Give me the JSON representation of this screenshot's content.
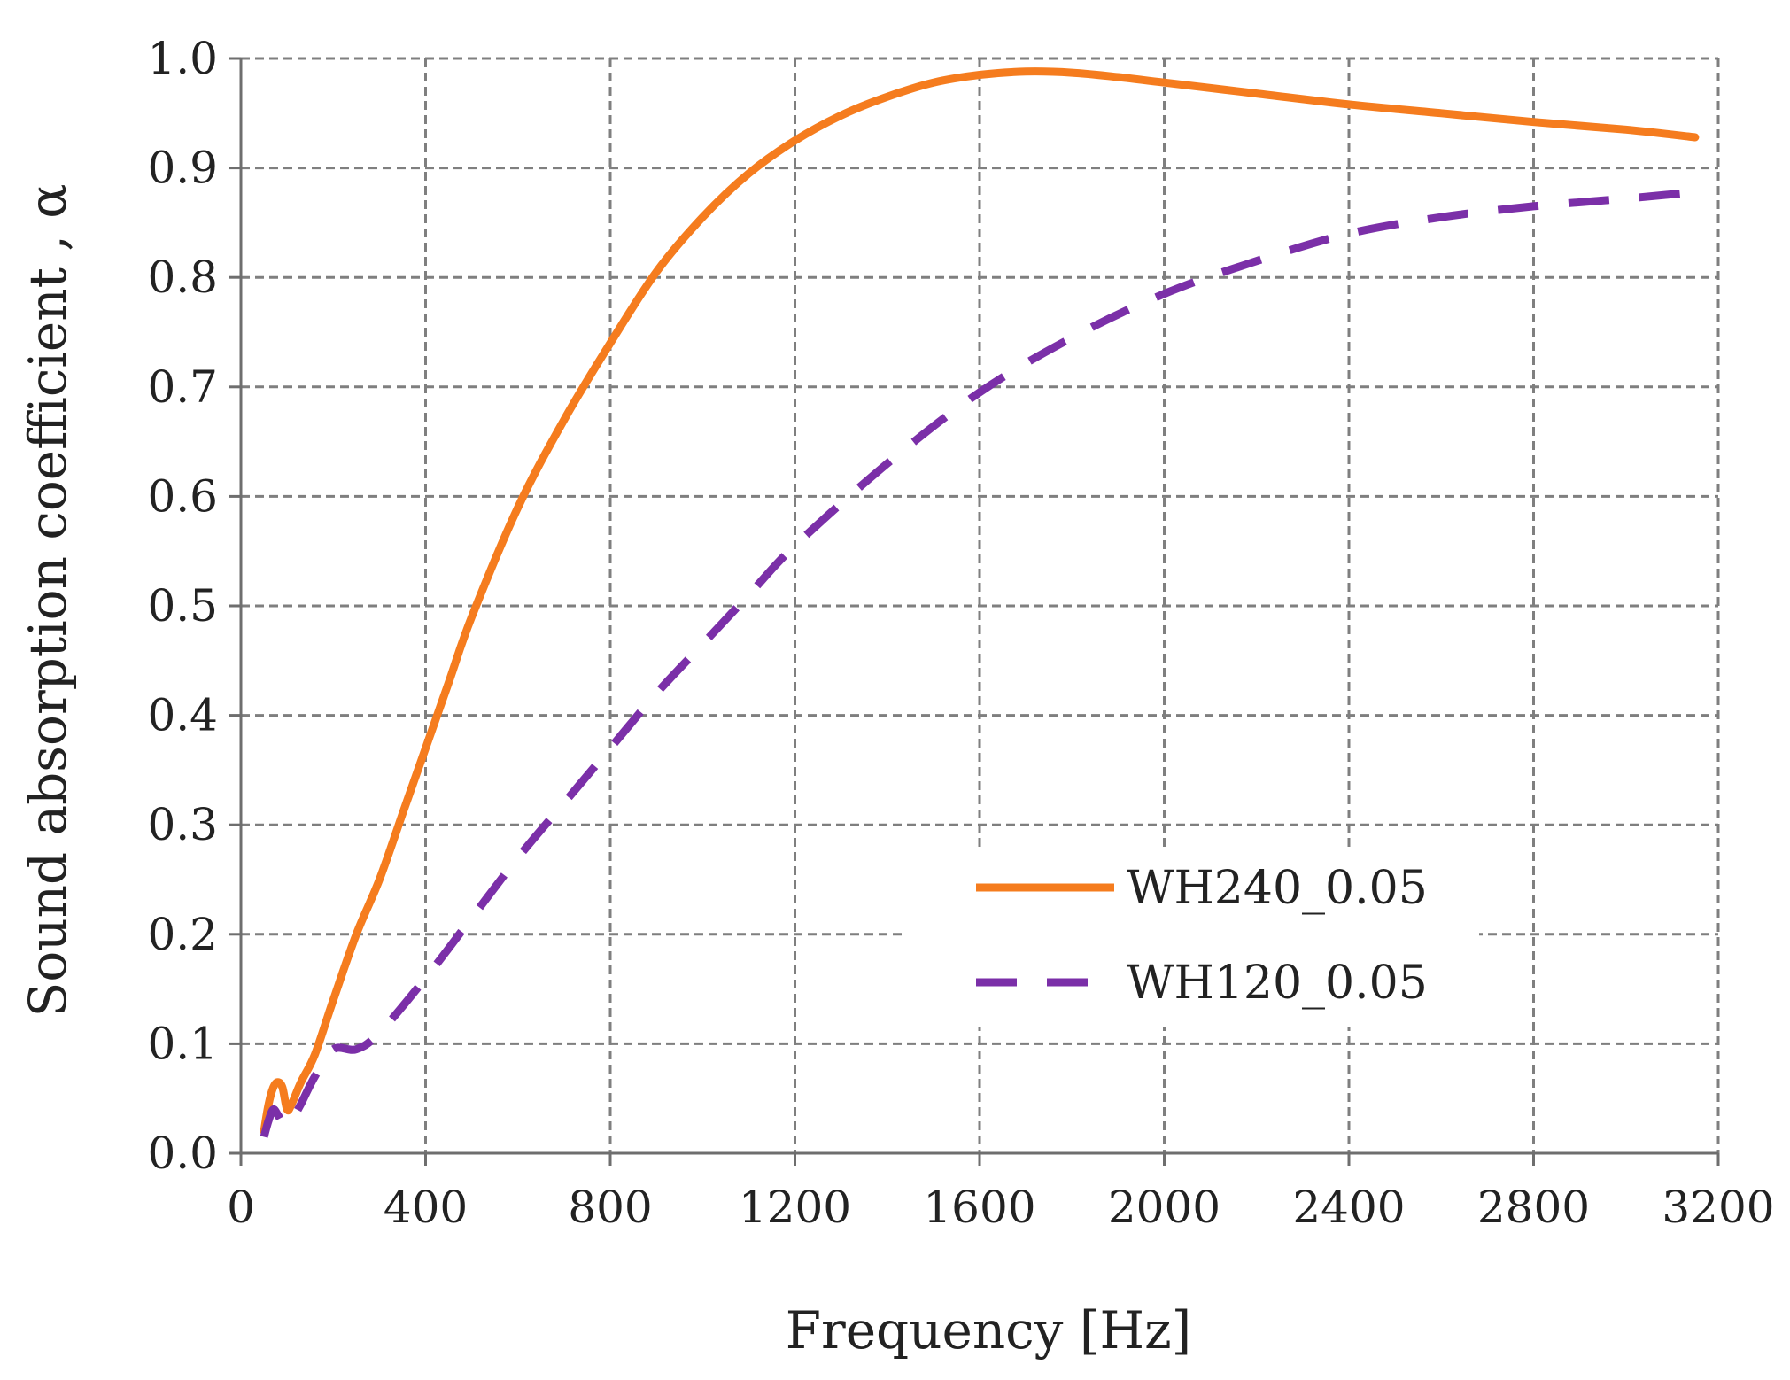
{
  "chart_data": {
    "type": "line",
    "title": "",
    "xlabel": "Frequency  [Hz]",
    "ylabel": "Sound absorption coefficient , α",
    "xlim": [
      0,
      3200
    ],
    "ylim": [
      0,
      1.0
    ],
    "x_ticks": [
      0,
      400,
      800,
      1200,
      1600,
      2000,
      2400,
      2800,
      3200
    ],
    "x_tick_labels": [
      "0",
      "400",
      "800",
      "1200",
      "1600",
      "2000",
      "2400",
      "2800",
      "3200"
    ],
    "y_ticks": [
      0,
      0.1,
      0.2,
      0.3,
      0.4,
      0.5,
      0.6,
      0.7,
      0.8,
      0.9,
      1.0
    ],
    "y_tick_labels": [
      "0.0",
      "0.1",
      "0.2",
      "0.3",
      "0.4",
      "0.5",
      "0.6",
      "0.7",
      "0.8",
      "0.9",
      "1.0"
    ],
    "grid": true,
    "legend_position": "center-right",
    "series": [
      {
        "name": "WH240_0.05",
        "color": "#F57C1E",
        "style": "solid",
        "x": [
          50,
          60,
          70,
          80,
          90,
          100,
          110,
          130,
          160,
          200,
          250,
          300,
          350,
          400,
          450,
          500,
          600,
          700,
          800,
          900,
          1000,
          1100,
          1200,
          1300,
          1400,
          1500,
          1600,
          1700,
          1800,
          1900,
          2000,
          2200,
          2400,
          2600,
          2800,
          3000,
          3150
        ],
        "y": [
          0.02,
          0.045,
          0.06,
          0.065,
          0.06,
          0.04,
          0.045,
          0.065,
          0.09,
          0.14,
          0.2,
          0.25,
          0.31,
          0.37,
          0.43,
          0.49,
          0.59,
          0.67,
          0.74,
          0.805,
          0.855,
          0.895,
          0.925,
          0.948,
          0.965,
          0.978,
          0.985,
          0.988,
          0.987,
          0.983,
          0.978,
          0.968,
          0.958,
          0.95,
          0.942,
          0.935,
          0.928
        ]
      },
      {
        "name": "WH120_0.05",
        "color": "#7B2FA8",
        "style": "dashed",
        "x": [
          50,
          60,
          70,
          80,
          90,
          100,
          110,
          130,
          160,
          200,
          250,
          300,
          400,
          500,
          600,
          700,
          800,
          900,
          1000,
          1100,
          1200,
          1400,
          1600,
          1800,
          2000,
          2200,
          2400,
          2600,
          2800,
          3000,
          3150
        ],
        "y": [
          0.015,
          0.03,
          0.04,
          0.035,
          0.028,
          0.025,
          0.03,
          0.045,
          0.07,
          0.095,
          0.095,
          0.11,
          0.16,
          0.215,
          0.27,
          0.32,
          0.37,
          0.42,
          0.465,
          0.51,
          0.555,
          0.63,
          0.695,
          0.745,
          0.785,
          0.815,
          0.84,
          0.855,
          0.865,
          0.872,
          0.878
        ]
      }
    ]
  }
}
